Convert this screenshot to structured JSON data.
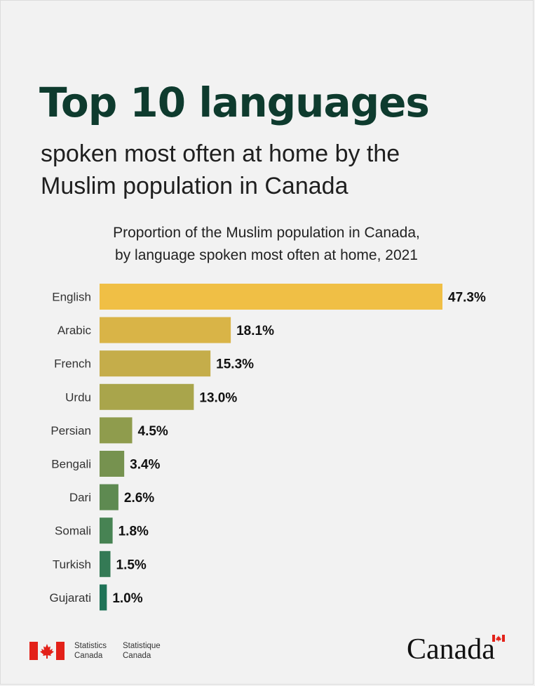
{
  "header": {
    "title": "Top 10 languages",
    "subtitle_line1": "spoken most often at home by the",
    "subtitle_line2": "Muslim population in Canada"
  },
  "chart_data": {
    "type": "bar",
    "orientation": "horizontal",
    "title_line1": "Proportion of the Muslim population in Canada,",
    "title_line2": "by language spoken most often at home, 2021",
    "categories": [
      "English",
      "Arabic",
      "French",
      "Urdu",
      "Persian",
      "Bengali",
      "Dari",
      "Somali",
      "Turkish",
      "Gujarati"
    ],
    "values": [
      47.3,
      18.1,
      15.3,
      13.0,
      4.5,
      3.4,
      2.6,
      1.8,
      1.5,
      1.0
    ],
    "value_labels": [
      "47.3%",
      "18.1%",
      "15.3%",
      "13.0%",
      "4.5%",
      "3.4%",
      "2.6%",
      "1.8%",
      "1.5%",
      "1.0%"
    ],
    "unit": "%",
    "colors": [
      "#f0bf45",
      "#d9b447",
      "#c5ad4a",
      "#a9a54b",
      "#8f9c4d",
      "#76924f",
      "#5e8a51",
      "#478353",
      "#347a55",
      "#1f7357"
    ],
    "grid": false,
    "legend": "none"
  },
  "footer": {
    "statcan_en_line1": "Statistics",
    "statcan_en_line2": "Canada",
    "statcan_fr_line1": "Statistique",
    "statcan_fr_line2": "Canada",
    "wordmark": "Canada",
    "flag_color": "#e32119"
  }
}
